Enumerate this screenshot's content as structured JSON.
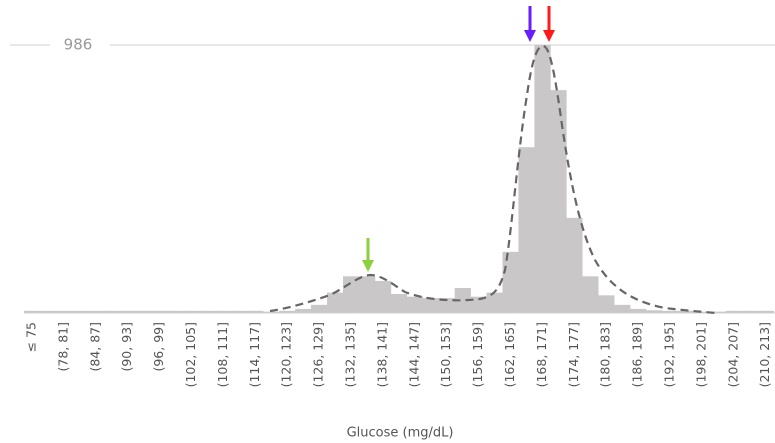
{
  "chart_data": {
    "type": "bar",
    "x_label": "Glucose (mg/dL)",
    "categories": [
      "≤ 75",
      null,
      "(78, 81]",
      null,
      "(84, 87]",
      null,
      "(90, 93]",
      null,
      "(96, 99]",
      null,
      "(102, 105]",
      null,
      "(108, 111]",
      null,
      "(114, 117]",
      null,
      "(120, 123]",
      null,
      "(126, 129]",
      null,
      "(132, 135]",
      null,
      "(138, 141]",
      null,
      "(144, 147]",
      null,
      "(150, 153]",
      null,
      "(156, 159]",
      null,
      "(162, 165]",
      null,
      "(168, 171]",
      null,
      "(174, 177]",
      null,
      "(180, 183]",
      null,
      "(186, 189]",
      null,
      "(192, 195]",
      null,
      "(198, 201]",
      null,
      "(204, 207]",
      null,
      "(210, 213]"
    ],
    "values": [
      8,
      8,
      8,
      8,
      8,
      8,
      8,
      8,
      8,
      8,
      8,
      8,
      8,
      8,
      8,
      5,
      8,
      15,
      30,
      75,
      135,
      135,
      118,
      70,
      60,
      55,
      55,
      92,
      60,
      75,
      225,
      610,
      986,
      820,
      350,
      135,
      65,
      30,
      15,
      10,
      8,
      8,
      5,
      5,
      8,
      8,
      8
    ],
    "color": "#c9c7c7",
    "ylim": [
      0,
      986
    ],
    "yticks": [
      986
    ],
    "grid": true
  }
}
